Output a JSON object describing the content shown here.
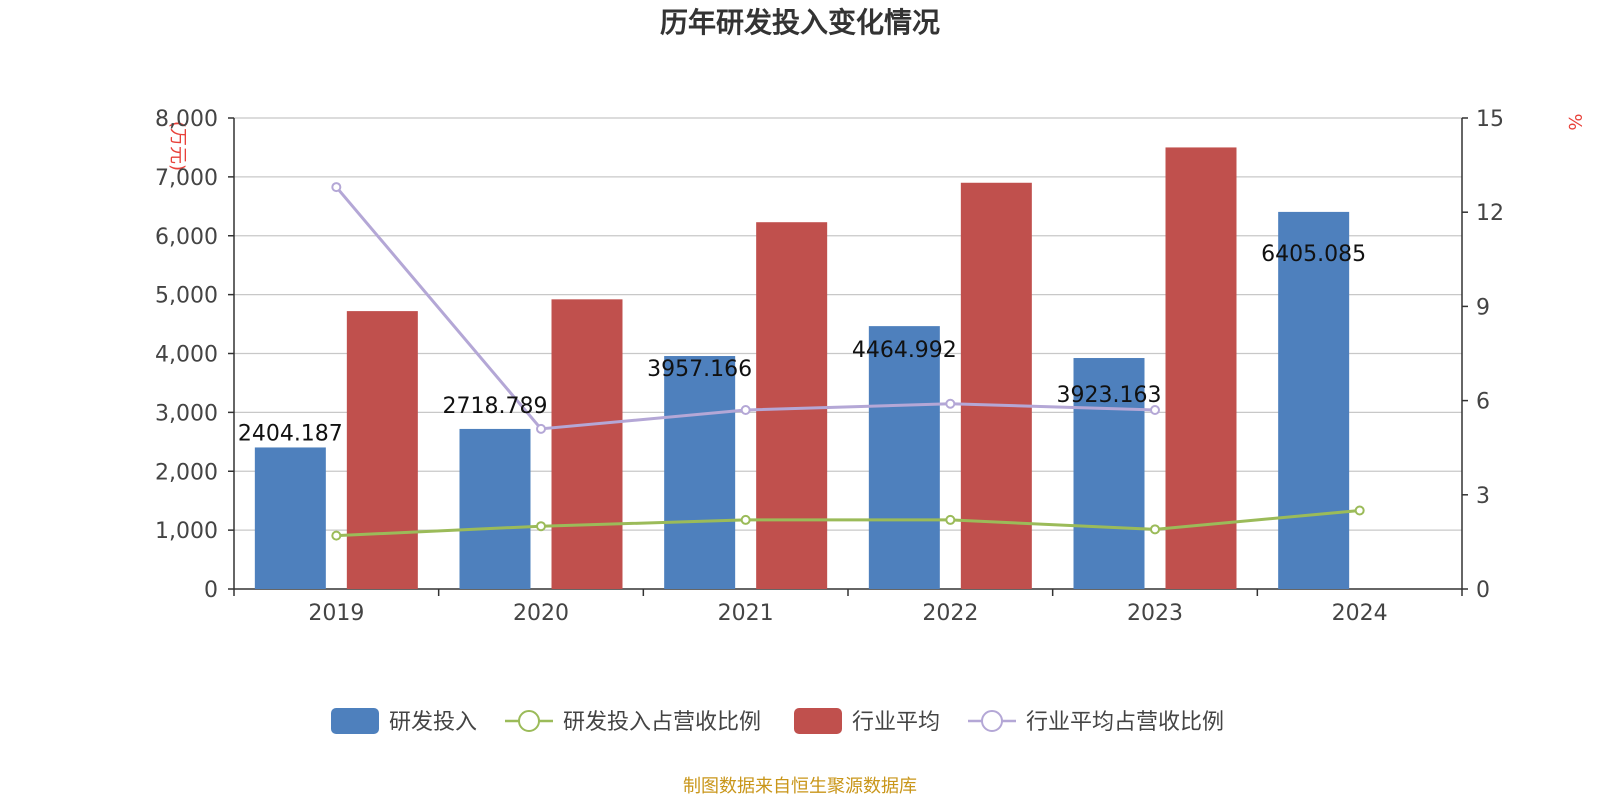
{
  "chart_data": {
    "type": "bar",
    "title": "历年研发投入变化情况",
    "categories": [
      "2019",
      "2020",
      "2021",
      "2022",
      "2023",
      "2024"
    ],
    "y_left": {
      "unit": "(万元)",
      "ylim": [
        0,
        8000
      ],
      "ticks": [
        "0",
        "1,000",
        "2,000",
        "3,000",
        "4,000",
        "5,000",
        "6,000",
        "7,000",
        "8,000"
      ]
    },
    "y_right": {
      "unit": "%",
      "ylim": [
        0,
        15
      ],
      "ticks": [
        "0",
        "3",
        "6",
        "9",
        "12",
        "15"
      ]
    },
    "series": [
      {
        "name": "研发投入",
        "kind": "bar",
        "axis": "left",
        "color": "#4e80bd",
        "values": [
          2404.187,
          2718.789,
          3957.166,
          4464.992,
          3923.163,
          6405.085
        ],
        "labels": [
          "2404.187",
          "2718.789",
          "3957.166",
          "4464.992",
          "3923.163",
          "6405.085"
        ]
      },
      {
        "name": "研发投入占营收比例",
        "kind": "line",
        "axis": "right",
        "color": "#9bbb59",
        "values": [
          1.7,
          2.0,
          2.2,
          2.2,
          1.9,
          2.5
        ]
      },
      {
        "name": "行业平均",
        "kind": "bar",
        "axis": "left",
        "color": "#c0504d",
        "values": [
          4720,
          4920,
          6230,
          6900,
          7500,
          null
        ]
      },
      {
        "name": "行业平均占营收比例",
        "kind": "line",
        "axis": "right",
        "color": "#b4a7d6",
        "values": [
          12.8,
          5.1,
          5.7,
          5.9,
          5.7,
          null
        ]
      }
    ],
    "grid": true,
    "legend_position": "bottom"
  },
  "source": "制图数据来自恒生聚源数据库"
}
